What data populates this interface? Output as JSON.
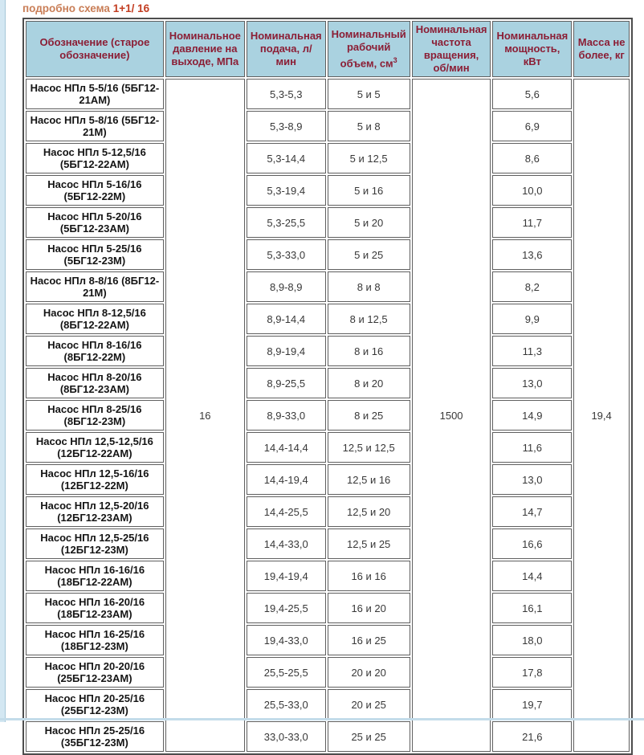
{
  "page": {
    "title_main": "подробно схема ",
    "title_scheme": "1+1/ 16"
  },
  "colors": {
    "header_bg": "#aad2e0",
    "header_text": "#8b1e35",
    "title_main": "#c97e57",
    "title_scheme": "#c23c20",
    "cell_border": "#5f5f5f",
    "page_edge": "#d3e7f2"
  },
  "table": {
    "headers": [
      {
        "text": "Обозначение (старое обозначение)",
        "sup": ""
      },
      {
        "text": "Номинальное давление на выходе, МПа",
        "sup": ""
      },
      {
        "text": "Номинальная подача, л/ мин",
        "sup": ""
      },
      {
        "text": "Номинальный рабочий объем, см",
        "sup": "3"
      },
      {
        "text": "Номинальная частота вращения, об/мин",
        "sup": ""
      },
      {
        "text": "Номинальная мощность, кВт",
        "sup": ""
      },
      {
        "text": "Масса не более, кг",
        "sup": ""
      }
    ],
    "merged": {
      "pressure": "16",
      "speed": "1500",
      "mass": "19,4"
    },
    "rows": [
      {
        "name": "Насос НПл 5-5/16 (5БГ12-21АМ)",
        "flow": "5,3-5,3",
        "volume": "5 и 5",
        "power": "5,6"
      },
      {
        "name": "Насос НПл 5-8/16 (5БГ12-21М)",
        "flow": "5,3-8,9",
        "volume": "5 и 8",
        "power": "6,9"
      },
      {
        "name": "Насос НПл 5-12,5/16 (5БГ12-22АМ)",
        "flow": "5,3-14,4",
        "volume": "5 и 12,5",
        "power": "8,6"
      },
      {
        "name": "Насос НПл 5-16/16 (5БГ12-22М)",
        "flow": "5,3-19,4",
        "volume": "5 и 16",
        "power": "10,0"
      },
      {
        "name": "Насос НПл 5-20/16 (5БГ12-23АМ)",
        "flow": "5,3-25,5",
        "volume": "5 и 20",
        "power": "11,7"
      },
      {
        "name": "Насос НПл 5-25/16 (5БГ12-23М)",
        "flow": "5,3-33,0",
        "volume": "5 и 25",
        "power": "13,6"
      },
      {
        "name": "Насос НПл 8-8/16 (8БГ12-21М)",
        "flow": "8,9-8,9",
        "volume": "8 и 8",
        "power": "8,2"
      },
      {
        "name": "Насос НПл 8-12,5/16 (8БГ12-22АМ)",
        "flow": "8,9-14,4",
        "volume": "8 и 12,5",
        "power": "9,9"
      },
      {
        "name": "Насос НПл 8-16/16 (8БГ12-22М)",
        "flow": "8,9-19,4",
        "volume": "8 и 16",
        "power": "11,3"
      },
      {
        "name": "Насос НПл 8-20/16 (8БГ12-23АМ)",
        "flow": "8,9-25,5",
        "volume": "8 и 20",
        "power": "13,0"
      },
      {
        "name": "Насос НПл 8-25/16 (8БГ12-23М)",
        "flow": "8,9-33,0",
        "volume": "8 и 25",
        "power": "14,9"
      },
      {
        "name": "Насос НПл 12,5-12,5/16 (12БГ12-22АМ)",
        "flow": "14,4-14,4",
        "volume": "12,5 и 12,5",
        "power": "11,6"
      },
      {
        "name": "Насос НПл 12,5-16/16 (12БГ12-22М)",
        "flow": "14,4-19,4",
        "volume": "12,5 и 16",
        "power": "13,0"
      },
      {
        "name": "Насос НПл 12,5-20/16 (12БГ12-23АМ)",
        "flow": "14,4-25,5",
        "volume": "12,5 и 20",
        "power": "14,7"
      },
      {
        "name": "Насос НПл 12,5-25/16 (12БГ12-23М)",
        "flow": "14,4-33,0",
        "volume": "12,5 и 25",
        "power": "16,6"
      },
      {
        "name": "Насос НПл 16-16/16 (18БГ12-22АМ)",
        "flow": "19,4-19,4",
        "volume": "16 и 16",
        "power": "14,4"
      },
      {
        "name": "Насос НПл 16-20/16 (18БГ12-23АМ)",
        "flow": "19,4-25,5",
        "volume": "16 и 20",
        "power": "16,1"
      },
      {
        "name": "Насос НПл 16-25/16 (18БГ12-23М)",
        "flow": "19,4-33,0",
        "volume": "16 и 25",
        "power": "18,0"
      },
      {
        "name": "Насос НПл 20-20/16 (25БГ12-23АМ)",
        "flow": "25,5-25,5",
        "volume": "20 и 20",
        "power": "17,8"
      },
      {
        "name": "Насос НПл 20-25/16 (25БГ12-23М)",
        "flow": "25,5-33,0",
        "volume": "20 и 25",
        "power": "19,7"
      },
      {
        "name": "Насос НПл 25-25/16 (35БГ12-23М)",
        "flow": "33,0-33,0",
        "volume": "25 и 25",
        "power": "21,6"
      }
    ]
  }
}
